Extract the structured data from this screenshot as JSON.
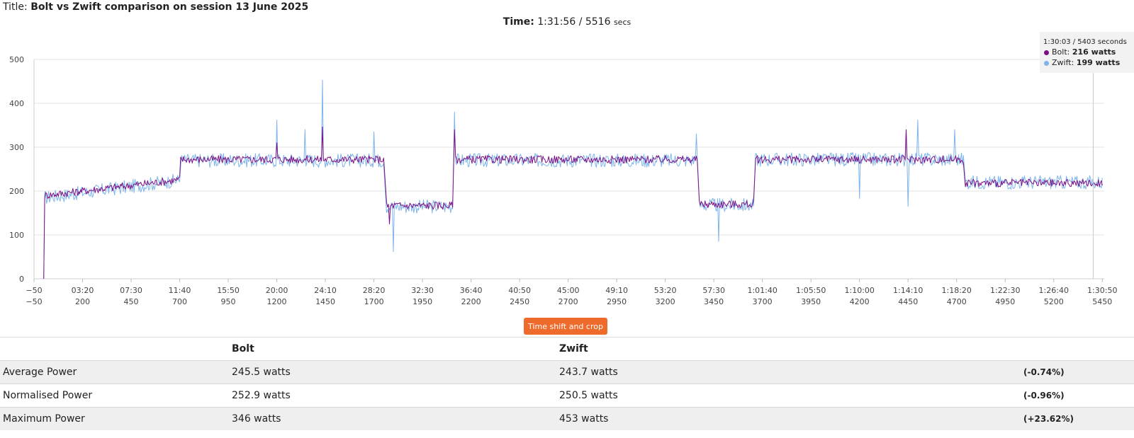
{
  "header": {
    "title_prefix": "Title:",
    "title": "Bolt vs Zwift comparison on session 13 June 2025"
  },
  "time": {
    "label": "Time:",
    "value": "1:31:56",
    "sep": "/",
    "secs_value": "5516",
    "secs_unit": "secs"
  },
  "legend_tooltip": {
    "time": "1:30:03 / 5403 seconds",
    "items": [
      {
        "name": "Bolt",
        "value": "216 watts",
        "color": "#7b0f84"
      },
      {
        "name": "Zwift",
        "value": "199 watts",
        "color": "#7db4ec"
      }
    ]
  },
  "crop_button": "Time shift and crop",
  "stats": {
    "headers": [
      "",
      "Bolt",
      "Zwift",
      ""
    ],
    "rows": [
      {
        "label": "Average Power",
        "bolt": "245.5 watts",
        "zwift": "243.7 watts",
        "diff": "(-0.74%)"
      },
      {
        "label": "Normalised Power",
        "bolt": "252.9 watts",
        "zwift": "250.5 watts",
        "diff": "(-0.96%)"
      },
      {
        "label": "Maximum Power",
        "bolt": "346 watts",
        "zwift": "453 watts",
        "diff": "(+23.62%)"
      }
    ]
  },
  "chart_data": {
    "type": "line",
    "xlim": [
      -50,
      5460
    ],
    "ylim": [
      0,
      500
    ],
    "yticks": [
      "0",
      "100",
      "200",
      "300",
      "400",
      "500"
    ],
    "grid": true,
    "x_ticks": [
      {
        "top": "−50",
        "bottom": "−50",
        "v": -50
      },
      {
        "top": "03:20",
        "bottom": "200",
        "v": 200
      },
      {
        "top": "07:30",
        "bottom": "450",
        "v": 450
      },
      {
        "top": "11:40",
        "bottom": "700",
        "v": 700
      },
      {
        "top": "15:50",
        "bottom": "950",
        "v": 950
      },
      {
        "top": "20:00",
        "bottom": "1200",
        "v": 1200
      },
      {
        "top": "24:10",
        "bottom": "1450",
        "v": 1450
      },
      {
        "top": "28:20",
        "bottom": "1700",
        "v": 1700
      },
      {
        "top": "32:30",
        "bottom": "1950",
        "v": 1950
      },
      {
        "top": "36:40",
        "bottom": "2200",
        "v": 2200
      },
      {
        "top": "40:50",
        "bottom": "2450",
        "v": 2450
      },
      {
        "top": "45:00",
        "bottom": "2700",
        "v": 2700
      },
      {
        "top": "49:10",
        "bottom": "2950",
        "v": 2950
      },
      {
        "top": "53:20",
        "bottom": "3200",
        "v": 3200
      },
      {
        "top": "57:30",
        "bottom": "3450",
        "v": 3450
      },
      {
        "top": "1:01:40",
        "bottom": "3700",
        "v": 3700
      },
      {
        "top": "1:05:50",
        "bottom": "3950",
        "v": 3950
      },
      {
        "top": "1:10:00",
        "bottom": "4200",
        "v": 4200
      },
      {
        "top": "1:14:10",
        "bottom": "4450",
        "v": 4450
      },
      {
        "top": "1:18:20",
        "bottom": "4700",
        "v": 4700
      },
      {
        "top": "1:22:30",
        "bottom": "4950",
        "v": 4950
      },
      {
        "top": "1:26:40",
        "bottom": "5200",
        "v": 5200
      },
      {
        "top": "1:30:50",
        "bottom": "5450",
        "v": 5450
      }
    ],
    "crosshair_x": 5403,
    "series": [
      {
        "name": "Zwift",
        "color": "#7db4ec",
        "segments": [
          [
            0,
            0,
            5,
            185,
            700,
            225,
            0
          ],
          [
            705,
            1750,
            270,
            270,
            0
          ],
          [
            1765,
            2105,
            165,
            165,
            0
          ],
          [
            2115,
            3365,
            270,
            270,
            0
          ],
          [
            3375,
            3655,
            168,
            168,
            0
          ],
          [
            3665,
            4735,
            272,
            272,
            0
          ],
          [
            4745,
            5450,
            220,
            220,
            0
          ]
        ],
        "noise": 16,
        "spikes": [
          [
            1435,
            453
          ],
          [
            1200,
            362
          ],
          [
            1700,
            335
          ],
          [
            2115,
            380
          ],
          [
            1800,
            62
          ],
          [
            3475,
            85
          ],
          [
            4450,
            165
          ],
          [
            4500,
            362
          ],
          [
            4200,
            183
          ],
          [
            4690,
            340
          ],
          [
            4440,
            335
          ],
          [
            3360,
            330
          ],
          [
            1345,
            340
          ]
        ]
      },
      {
        "name": "Bolt",
        "color": "#7b0f84",
        "segments": [
          [
            0,
            0,
            5,
            190,
            700,
            226,
            0
          ],
          [
            705,
            1750,
            272,
            272,
            0
          ],
          [
            1765,
            2105,
            167,
            167,
            0
          ],
          [
            2115,
            3365,
            272,
            272,
            0
          ],
          [
            3375,
            3655,
            170,
            170,
            0
          ],
          [
            3665,
            4735,
            272,
            272,
            0
          ],
          [
            4745,
            5450,
            218,
            218,
            0
          ]
        ],
        "noise": 9,
        "spikes": [
          [
            1435,
            346
          ],
          [
            1200,
            310
          ],
          [
            2115,
            340
          ],
          [
            4440,
            340
          ],
          [
            3370,
            120
          ],
          [
            1780,
            125
          ]
        ]
      }
    ]
  }
}
